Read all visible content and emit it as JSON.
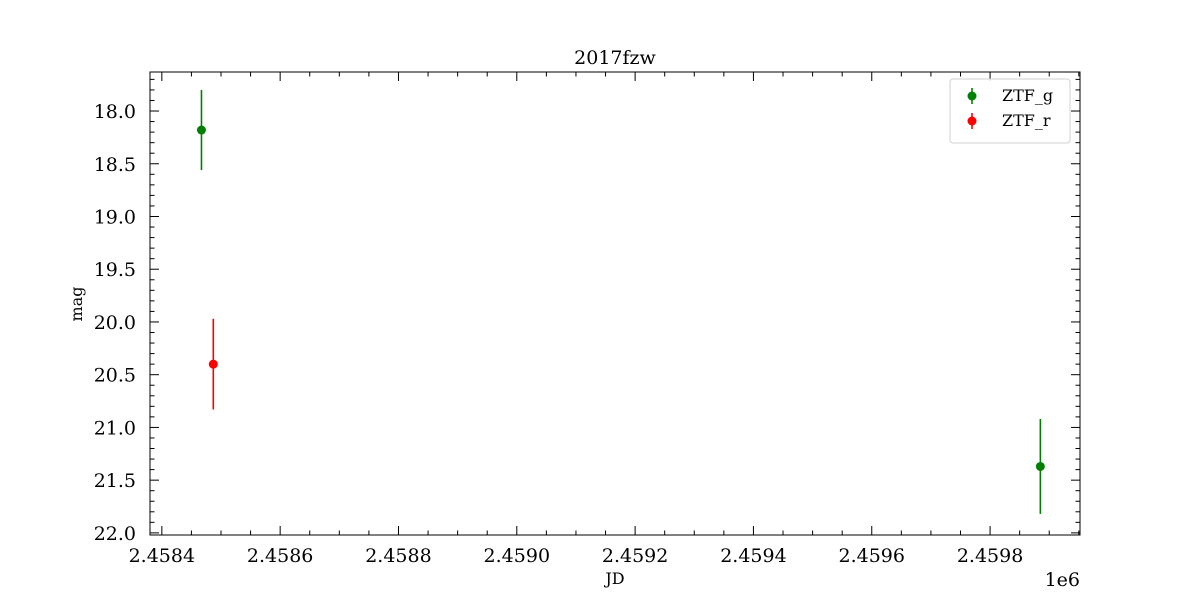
{
  "chart_data": {
    "type": "scatter",
    "title": "2017fzw",
    "xlabel": "JD",
    "ylabel": "mag",
    "x_offset_label": "1e6",
    "xlim": [
      2.45838,
      2.459952
    ],
    "ylim": [
      22.02,
      17.63
    ],
    "y_inverted": true,
    "xticks": [
      2.4584,
      2.4586,
      2.4588,
      2.459,
      2.4592,
      2.4594,
      2.4596,
      2.4598
    ],
    "xtick_labels": [
      "2.4584",
      "2.4586",
      "2.4588",
      "2.4590",
      "2.4592",
      "2.4594",
      "2.4596",
      "2.4598"
    ],
    "yticks": [
      18.0,
      18.5,
      19.0,
      19.5,
      20.0,
      20.5,
      21.0,
      21.5,
      22.0
    ],
    "ytick_labels": [
      "18.0",
      "18.5",
      "19.0",
      "19.5",
      "20.0",
      "20.5",
      "21.0",
      "21.5",
      "22.0"
    ],
    "grid": false,
    "legend_position": "top-right",
    "series": [
      {
        "name": "ZTF_g",
        "color": "#008000",
        "points": [
          {
            "x": 2.458467,
            "y": 18.18,
            "err": 0.38
          },
          {
            "x": 2.459885,
            "y": 21.37,
            "err": 0.45
          }
        ]
      },
      {
        "name": "ZTF_r",
        "color": "#ff0000",
        "points": [
          {
            "x": 2.458487,
            "y": 20.4,
            "err": 0.43
          }
        ]
      }
    ]
  }
}
